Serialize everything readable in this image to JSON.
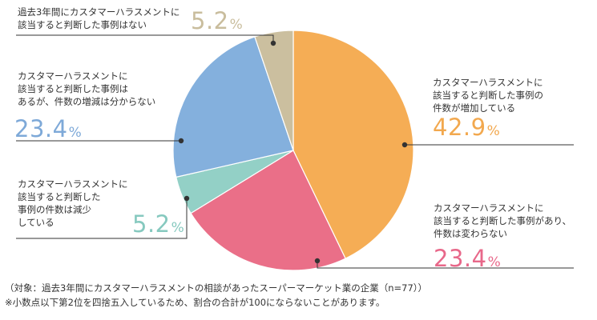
{
  "chart_data": {
    "type": "pie",
    "slices": [
      {
        "label": "カスタマーハラスメントに該当すると判断した事例の件数が増加している",
        "value": 42.9,
        "color": "#f5ad55"
      },
      {
        "label": "カスタマーハラスメントに該当すると判断した事例があり、件数は変わらない",
        "value": 23.4,
        "color": "#ea6f88"
      },
      {
        "label": "カスタマーハラスメントに該当すると判断した事例の件数は減少している",
        "value": 5.2,
        "color": "#93d0c6"
      },
      {
        "label": "カスタマーハラスメントに該当すると判断した事例はあるが、件数の増減は分からない",
        "value": 23.4,
        "color": "#84b0dd"
      },
      {
        "label": "過去3年間にカスタマーハラスメントに該当すると判断した事例はない",
        "value": 5.2,
        "color": "#cbbf9f"
      }
    ],
    "value_unit": "%"
  },
  "labels": {
    "none": {
      "lines": [
        "過去3年間にカスタマーハラスメントに",
        "該当すると判断した事例はない"
      ],
      "value": "5.2",
      "unit": "%"
    },
    "unknown": {
      "lines": [
        "カスタマーハラスメントに",
        "該当すると判断した事例は",
        "あるが、件数の増減は分からない"
      ],
      "value": "23.4",
      "unit": "%"
    },
    "decrease": {
      "lines": [
        "カスタマーハラスメントに",
        "該当すると判断した",
        "事例の件数は減少",
        "している"
      ],
      "value": "5.2",
      "unit": "%"
    },
    "increase": {
      "lines": [
        "カスタマーハラスメントに",
        "該当すると判断した事例の",
        "件数が増加している"
      ],
      "value": "42.9",
      "unit": "%"
    },
    "same": {
      "lines": [
        "カスタマーハラスメントに",
        "該当すると判断した事例があり、",
        "件数は変わらない"
      ],
      "value": "23.4",
      "unit": "%"
    }
  },
  "notes": {
    "target": "（対象：過去3年間にカスタマーハラスメントの相談があったスーパーマーケット業の企業（n=77））",
    "rounding": "※小数点以下第2位を四捨五入しているため、割合の合計が100にならないことがあります。"
  }
}
